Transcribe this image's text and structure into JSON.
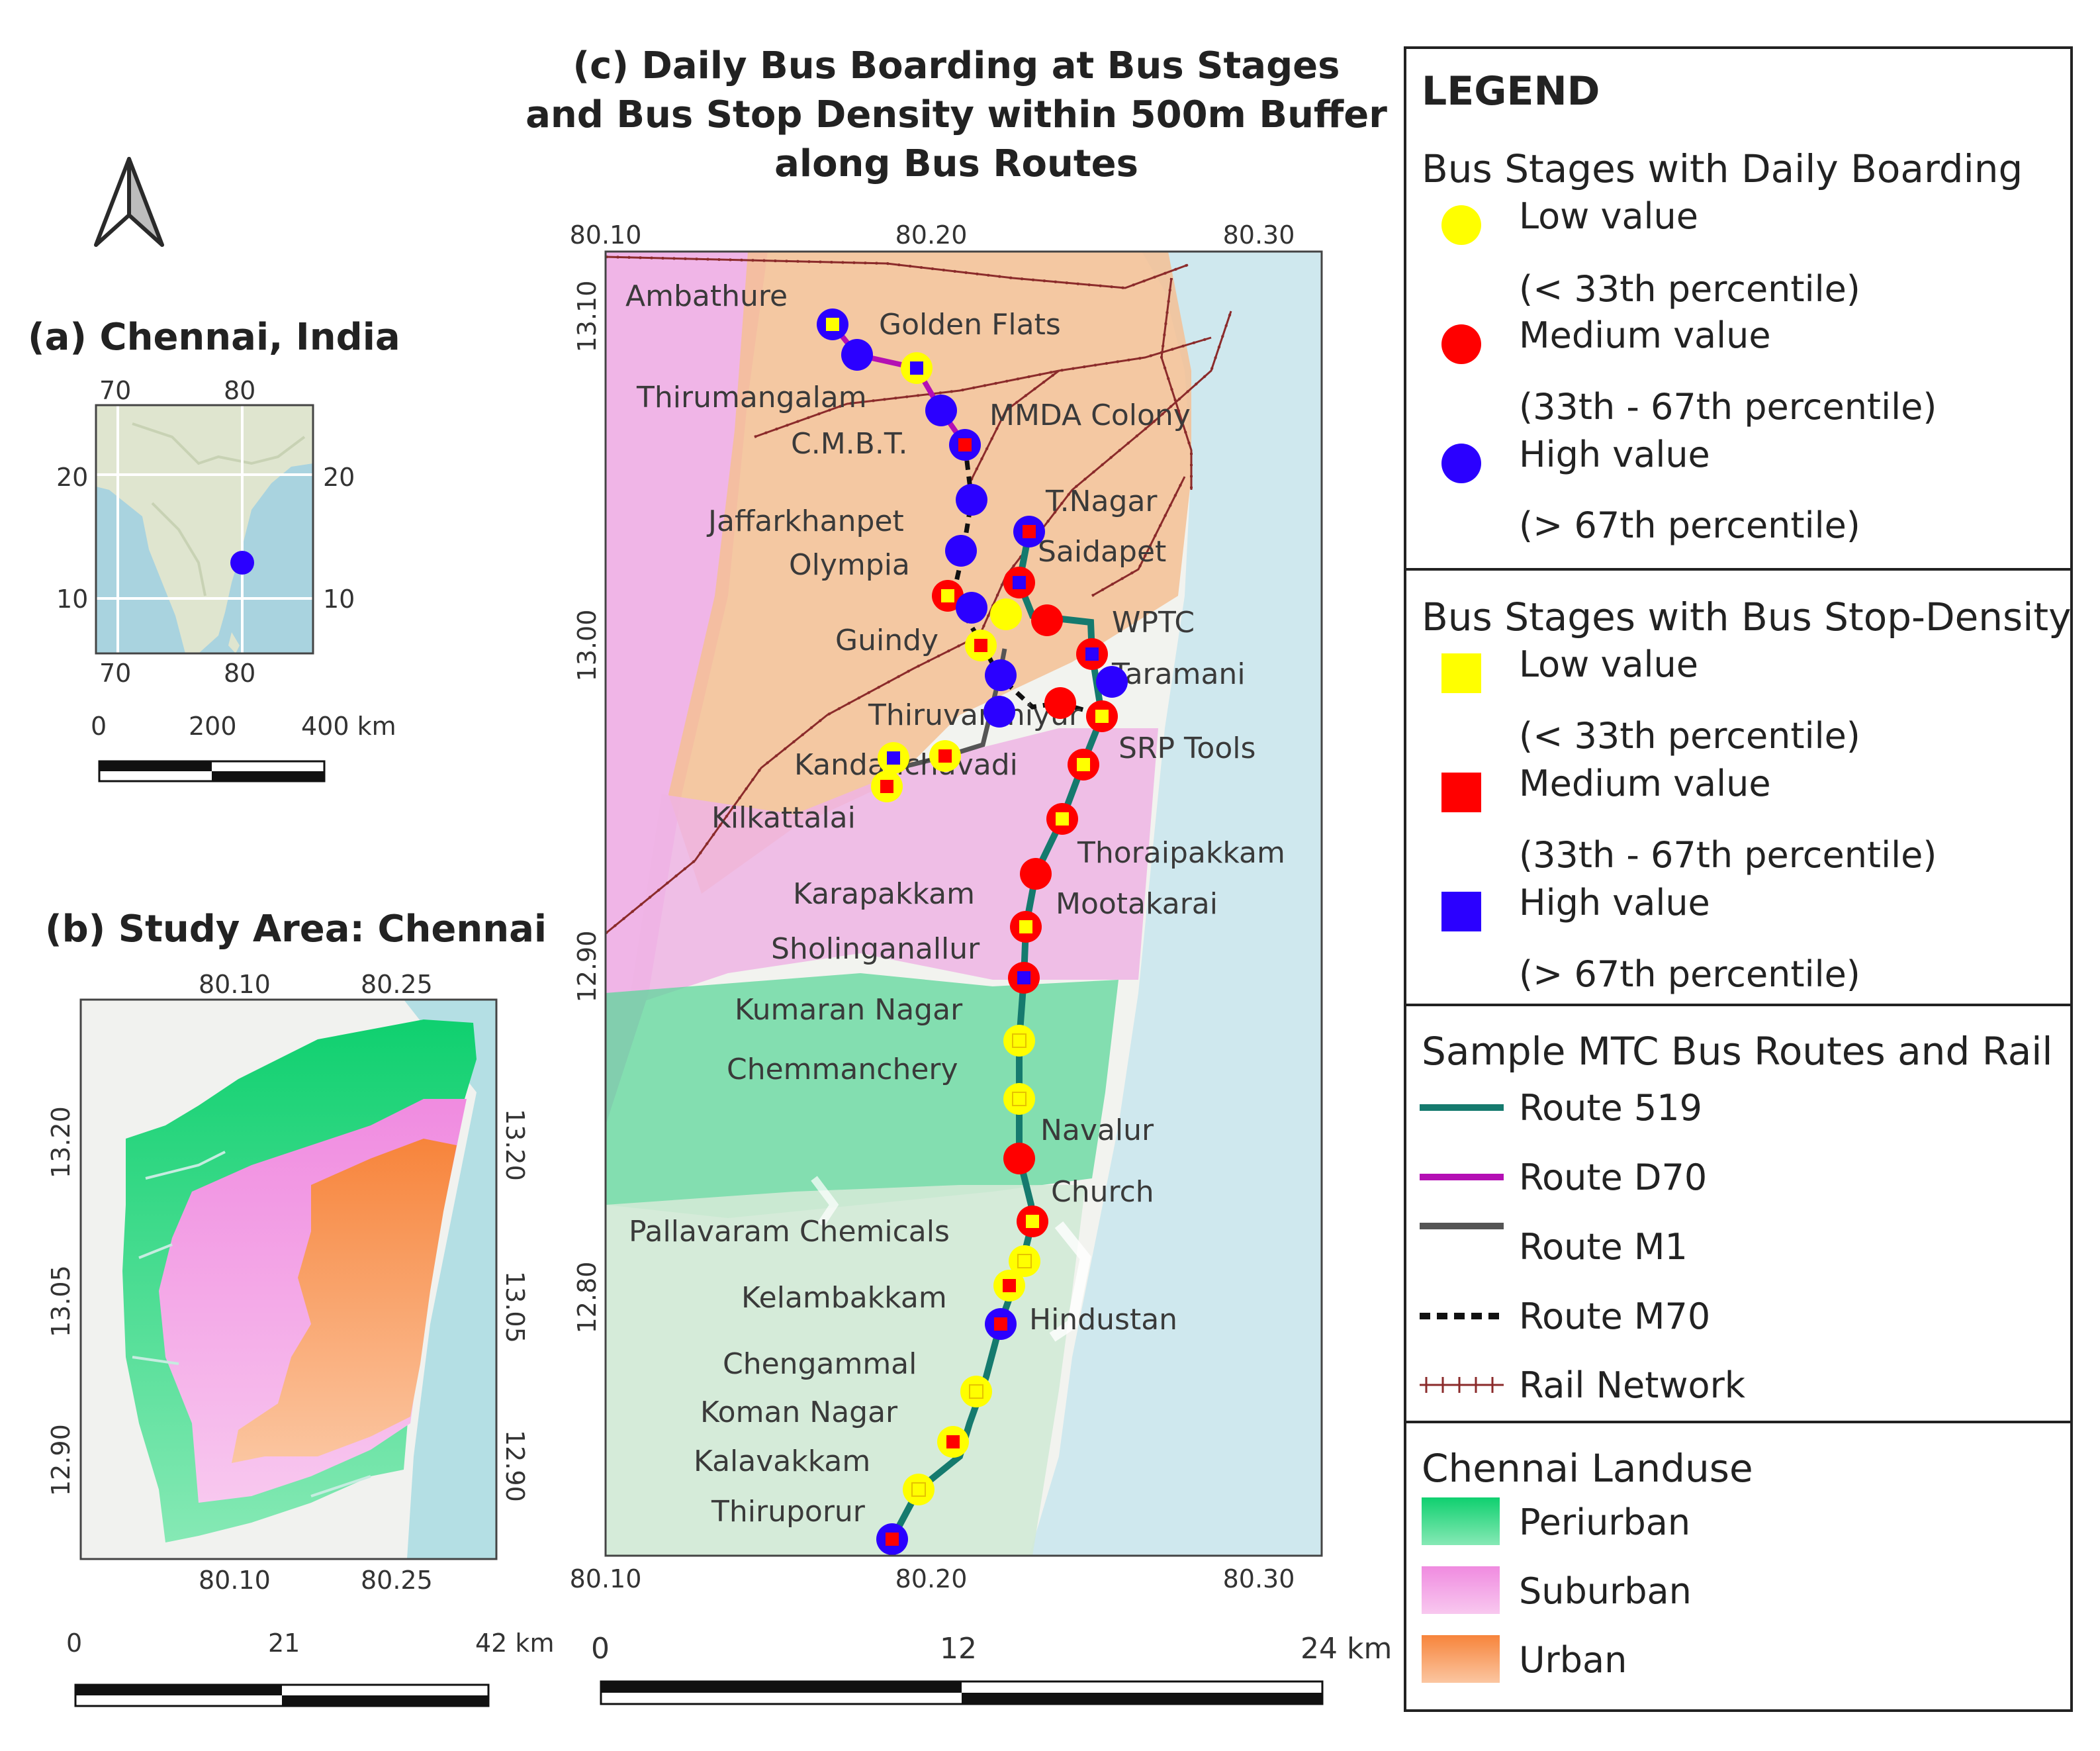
{
  "panel_a": {
    "title": "(a) Chennai, India",
    "lon_ticks": [
      "70",
      "80"
    ],
    "lat_ticks": [
      "20",
      "10"
    ],
    "scale": {
      "ticks": [
        "0",
        "200",
        "400 km"
      ]
    }
  },
  "panel_b": {
    "title": "(b) Study Area: Chennai",
    "lon_ticks": [
      "80.10",
      "80.25"
    ],
    "lat_ticks": [
      "13.20",
      "13.05",
      "12.90"
    ],
    "scale": {
      "ticks": [
        "0",
        "21",
        "42 km"
      ]
    }
  },
  "panel_c": {
    "title_lines": [
      "(c) Daily Bus Boarding at Bus Stages",
      "and Bus Stop Density within 500m Buffer",
      "along Bus Routes"
    ],
    "lon_ticks": [
      "80.10",
      "80.20",
      "80.30"
    ],
    "lat_ticks": [
      "13.10",
      "13.00",
      "12.90",
      "12.80"
    ],
    "scale": {
      "ticks": [
        "0",
        "12",
        "24 km"
      ]
    },
    "stop_labels": [
      "Ambathure",
      "Golden Flats",
      "Thirumangalam",
      "MMDA Colony",
      "C.M.B.T.",
      "T.Nagar",
      "Jaffarkhanpet",
      "Saidapet",
      "Olympia",
      "WPTC",
      "Guindy",
      "Taramani",
      "Thiruvanmiyur",
      "SRP Tools",
      "Kandanchavadi",
      "Kilkattalai",
      "Thoraipakkam",
      "Karapakkam",
      "Mootakarai",
      "Sholinganallur",
      "Kumaran Nagar",
      "Chemmanchery",
      "Navalur",
      "Church",
      "Pallavaram Chemicals",
      "Kelambakkam",
      "Hindustan",
      "Chengammal",
      "Koman Nagar",
      "Kalavakkam",
      "Thiruporur"
    ]
  },
  "legend": {
    "title": "LEGEND",
    "boarding": {
      "heading": "Bus Stages with Daily Boarding",
      "items": [
        {
          "label": "Low value",
          "sub": "(< 33th percentile)",
          "color": "#ffff00"
        },
        {
          "label": "Medium value",
          "sub": "(33th - 67th percentile)",
          "color": "#ff0000"
        },
        {
          "label": "High value",
          "sub": "(> 67th percentile)",
          "color": "#2b00ff"
        }
      ]
    },
    "density": {
      "heading": "Bus Stages with Bus Stop-Density",
      "items": [
        {
          "label": "Low value",
          "sub": "(< 33th percentile)",
          "color": "#ffff00"
        },
        {
          "label": "Medium value",
          "sub": "(33th - 67th percentile)",
          "color": "#ff0000"
        },
        {
          "label": "High value",
          "sub": "(> 67th percentile)",
          "color": "#2b00ff"
        }
      ]
    },
    "routes": {
      "heading": "Sample MTC Bus Routes and Rail",
      "items": [
        {
          "label": "Route 519",
          "color": "#157a6e"
        },
        {
          "label": "Route D70",
          "color": "#b40fb4"
        },
        {
          "label": "Route M1",
          "color": "#555555"
        },
        {
          "label": "Route M70",
          "color": "#111111"
        },
        {
          "label": "Rail Network",
          "color": "#8b2b2b"
        }
      ]
    },
    "landuse": {
      "heading": "Chennai Landuse",
      "items": [
        {
          "label": "Periurban",
          "color": "#22d67d"
        },
        {
          "label": "Suburban",
          "color": "#f39ae6"
        },
        {
          "label": "Urban",
          "color": "#f8934f"
        }
      ]
    }
  }
}
